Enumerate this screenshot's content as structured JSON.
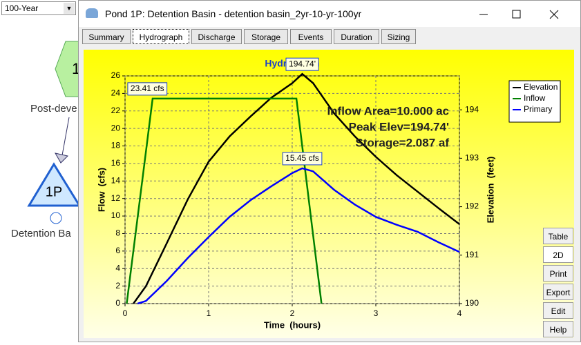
{
  "app": {
    "dropdown": "100-Year",
    "nodes": [
      {
        "label": "1",
        "caption": "Post-deve"
      },
      {
        "label": "1P",
        "caption": "Detention Ba"
      }
    ]
  },
  "window": {
    "title": "Pond 1P: Detention Basin - detention basin_2yr-10-yr-100yr",
    "tabs": [
      "Summary",
      "Hydrograph",
      "Discharge",
      "Storage",
      "Events",
      "Duration",
      "Sizing"
    ],
    "buttons": [
      "Table",
      "2D",
      "Print",
      "Export",
      "Edit",
      "Help"
    ]
  },
  "chart_data": {
    "type": "line",
    "title": "Hydrograph",
    "xlabel": "Time  (hours)",
    "ylabel": "Flow  (cfs)",
    "y2label": "Elevation  (feet)",
    "xlim": [
      0,
      4
    ],
    "xticks": [
      0,
      1,
      2,
      3,
      4
    ],
    "ylim": [
      0,
      26
    ],
    "yticks": [
      0,
      2,
      4,
      6,
      8,
      10,
      12,
      14,
      16,
      18,
      20,
      22,
      24,
      26
    ],
    "y2lim": [
      190,
      194.7
    ],
    "y2ticks": [
      190,
      191,
      192,
      193,
      194
    ],
    "grid": true,
    "legend": "upper right",
    "annotations": [
      "Inflow Area=10.000 ac",
      "Peak Elev=194.74'",
      "Storage=2.087 af"
    ],
    "series": [
      {
        "name": "Elevation",
        "color": "#000000",
        "axis": "y2",
        "x": [
          0.1,
          0.25,
          0.5,
          0.75,
          1,
          1.25,
          1.5,
          1.75,
          2,
          2.12,
          2.25,
          2.5,
          2.75,
          3,
          3.25,
          3.5,
          3.75,
          4
        ],
        "values": [
          190,
          190.36,
          191.25,
          192.15,
          192.93,
          193.45,
          193.86,
          194.25,
          194.55,
          194.74,
          194.55,
          193.93,
          193.45,
          193.03,
          192.65,
          192.31,
          191.97,
          191.64
        ],
        "value_labels": [
          null,
          null,
          null,
          null,
          null,
          null,
          null,
          null,
          null,
          "194.74'",
          null,
          null,
          null,
          null,
          null,
          null,
          null,
          null
        ]
      },
      {
        "name": "Inflow",
        "color": "#008000",
        "x": [
          0.02,
          0.33,
          2.05,
          2.35
        ],
        "values": [
          0,
          23.41,
          23.41,
          0
        ],
        "value_labels": [
          null,
          "23.41 cfs",
          null,
          null
        ]
      },
      {
        "name": "Primary",
        "color": "#0000ff",
        "x": [
          0.15,
          0.25,
          0.5,
          0.75,
          1,
          1.25,
          1.5,
          1.75,
          2,
          2.12,
          2.25,
          2.5,
          2.75,
          3,
          3.25,
          3.5,
          3.75,
          4
        ],
        "values": [
          0,
          0.3,
          2.6,
          5.2,
          7.6,
          9.9,
          11.8,
          13.4,
          14.9,
          15.45,
          15.1,
          13.0,
          11.3,
          9.9,
          9.0,
          8.2,
          7.0,
          5.9
        ],
        "value_labels": [
          null,
          null,
          null,
          null,
          null,
          null,
          null,
          null,
          null,
          "15.45 cfs",
          null,
          null,
          null,
          null,
          null,
          null,
          null,
          null
        ]
      }
    ]
  }
}
